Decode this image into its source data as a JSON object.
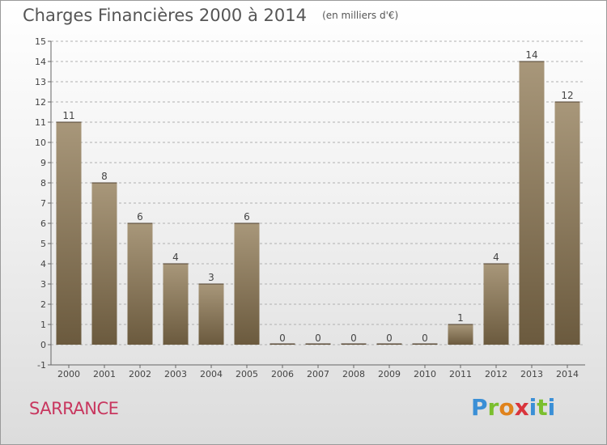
{
  "header": {
    "title": "Charges Financières 2000 à 2014",
    "subtitle": "(en milliers d'€)"
  },
  "footer": {
    "commune": "SARRANCE",
    "brand": "Proxiti"
  },
  "colors": {
    "bar_light": "#a8977a",
    "bar_dark": "#6b5a3e",
    "grid": "#b0b0b0",
    "commune": "#c8375f"
  },
  "chart_data": {
    "type": "bar",
    "title": "Charges Financières 2000 à 2014",
    "subtitle": "(en milliers d'€)",
    "xlabel": "",
    "ylabel": "",
    "categories": [
      "2000",
      "2001",
      "2002",
      "2003",
      "2004",
      "2005",
      "2006",
      "2007",
      "2008",
      "2009",
      "2010",
      "2011",
      "2012",
      "2013",
      "2014"
    ],
    "values": [
      11,
      8,
      6,
      4,
      3,
      6,
      0,
      0,
      0,
      0,
      0,
      1,
      4,
      14,
      12
    ],
    "ylim": [
      -1,
      15
    ],
    "yticks": [
      -1,
      0,
      1,
      2,
      3,
      4,
      5,
      6,
      7,
      8,
      9,
      10,
      11,
      12,
      13,
      14,
      15
    ],
    "grid": true,
    "legend": "none"
  }
}
